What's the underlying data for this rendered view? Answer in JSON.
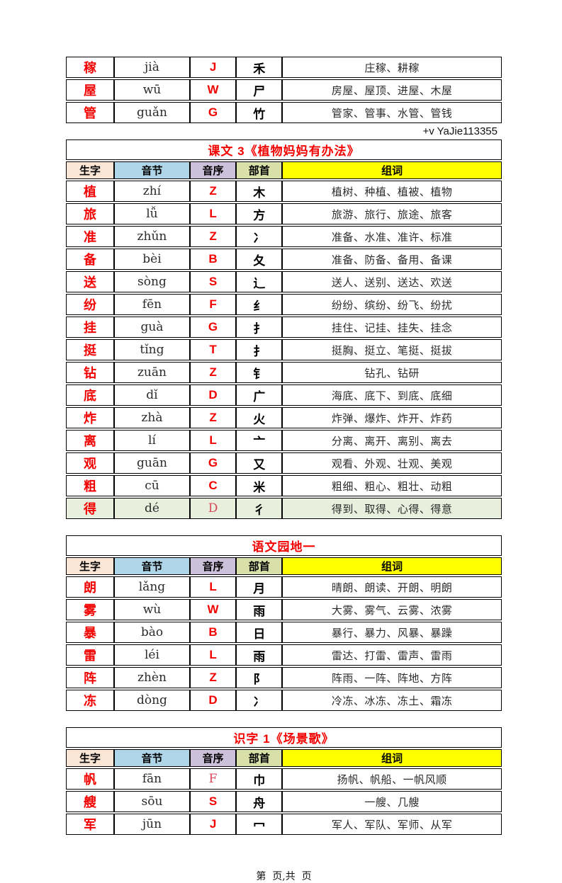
{
  "watermark": "+v  YaJie113355",
  "footer": "第  页,共  页",
  "accent_red": "#F40000",
  "highlight_row_bg": "#E9EFDD",
  "header_labels": [
    "生字",
    "音节",
    "音序",
    "部首",
    "组词"
  ],
  "header_keys": [
    "shengzi",
    "yinjie",
    "yinxu",
    "bushou",
    "zuci"
  ],
  "header_colors": [
    "#FBE5D5",
    "#AED6E8",
    "#CCC0DA",
    "#D9DFA8",
    "#FFFF00"
  ],
  "tables": [
    {
      "title": "",
      "show_header": false,
      "rows": [
        {
          "char": "稼",
          "pinyin": "jià",
          "initial": "J",
          "radical": "禾",
          "words": "庄稼、耕稼"
        },
        {
          "char": "屋",
          "pinyin": "wū",
          "initial": "W",
          "radical": "尸",
          "words": "房屋、屋顶、进屋、木屋"
        },
        {
          "char": "管",
          "pinyin": "guǎn",
          "initial": "G",
          "radical": "竹",
          "words": "管家、管事、水管、管钱"
        }
      ]
    },
    {
      "title": "课文 3《植物妈妈有办法》",
      "show_header": true,
      "rows": [
        {
          "char": "植",
          "pinyin": "zhí",
          "initial": "Z",
          "radical": "木",
          "words": "植树、种植、植被、植物"
        },
        {
          "char": "旅",
          "pinyin": "lǚ",
          "initial": "L",
          "radical": "方",
          "words": "旅游、旅行、旅途、旅客"
        },
        {
          "char": "准",
          "pinyin": "zhǔn",
          "initial": "Z",
          "radical": "冫",
          "words": "准备、水准、准许、标准"
        },
        {
          "char": "备",
          "pinyin": "bèi",
          "initial": "B",
          "radical": "夂",
          "words": "准备、防备、备用、备课"
        },
        {
          "char": "送",
          "pinyin": "sòng",
          "initial": "S",
          "radical": "辶",
          "words": "送人、送别、送达、欢送"
        },
        {
          "char": "纷",
          "pinyin": "fēn",
          "initial": "F",
          "radical": "纟",
          "words": "纷纷、缤纷、纷飞、纷扰"
        },
        {
          "char": "挂",
          "pinyin": "guà",
          "initial": "G",
          "radical": "扌",
          "words": "挂住、记挂、挂失、挂念"
        },
        {
          "char": "挺",
          "pinyin": "tǐng",
          "initial": "T",
          "radical": "扌",
          "words": "挺胸、挺立、笔挺、挺拔"
        },
        {
          "char": "钻",
          "pinyin": "zuān",
          "initial": "Z",
          "radical": "钅",
          "words": "钻孔、钻研"
        },
        {
          "char": "底",
          "pinyin": "dǐ",
          "initial": "D",
          "radical": "广",
          "words": "海底、底下、到底、底细"
        },
        {
          "char": "炸",
          "pinyin": "zhà",
          "initial": "Z",
          "radical": "火",
          "words": "炸弹、爆炸、炸开、炸药"
        },
        {
          "char": "离",
          "pinyin": "lí",
          "initial": "L",
          "radical": "亠",
          "words": "分离、离开、离别、离去"
        },
        {
          "char": "观",
          "pinyin": "guān",
          "initial": "G",
          "radical": "又",
          "words": "观看、外观、壮观、美观"
        },
        {
          "char": "粗",
          "pinyin": "cū",
          "initial": "C",
          "radical": "米",
          "words": "粗细、粗心、粗壮、动粗"
        },
        {
          "char": "得",
          "pinyin": "dé",
          "initial": "D",
          "radical": "彳",
          "words": "得到、取得、心得、得意",
          "highlight": true,
          "initial_light": true
        }
      ]
    },
    {
      "title": "语文园地一",
      "show_header": true,
      "rows": [
        {
          "char": "朗",
          "pinyin": "lǎng",
          "initial": "L",
          "radical": "月",
          "words": "晴朗、朗读、开朗、明朗"
        },
        {
          "char": "雾",
          "pinyin": "wù",
          "initial": "W",
          "radical": "雨",
          "words": "大雾、雾气、云雾、浓雾"
        },
        {
          "char": "暴",
          "pinyin": "bào",
          "initial": "B",
          "radical": "日",
          "words": "暴行、暴力、风暴、暴躁"
        },
        {
          "char": "雷",
          "pinyin": "léi",
          "initial": "L",
          "radical": "雨",
          "words": "雷达、打雷、雷声、雷雨"
        },
        {
          "char": "阵",
          "pinyin": "zhèn",
          "initial": "Z",
          "radical": "阝",
          "words": "阵雨、一阵、阵地、方阵"
        },
        {
          "char": "冻",
          "pinyin": "dòng",
          "initial": "D",
          "radical": "冫",
          "words": "冷冻、冰冻、冻土、霜冻"
        }
      ]
    },
    {
      "title": "识字 1《场景歌》",
      "show_header": true,
      "rows": [
        {
          "char": "帆",
          "pinyin": "fān",
          "initial": "F",
          "radical": "巾",
          "words": "扬帆、帆船、一帆风顺",
          "initial_light": true
        },
        {
          "char": "艘",
          "pinyin": "sōu",
          "initial": "S",
          "radical": "舟",
          "words": "一艘、几艘"
        },
        {
          "char": "军",
          "pinyin": "jūn",
          "initial": "J",
          "radical": "冖",
          "words": "军人、军队、军师、从军"
        }
      ]
    }
  ]
}
